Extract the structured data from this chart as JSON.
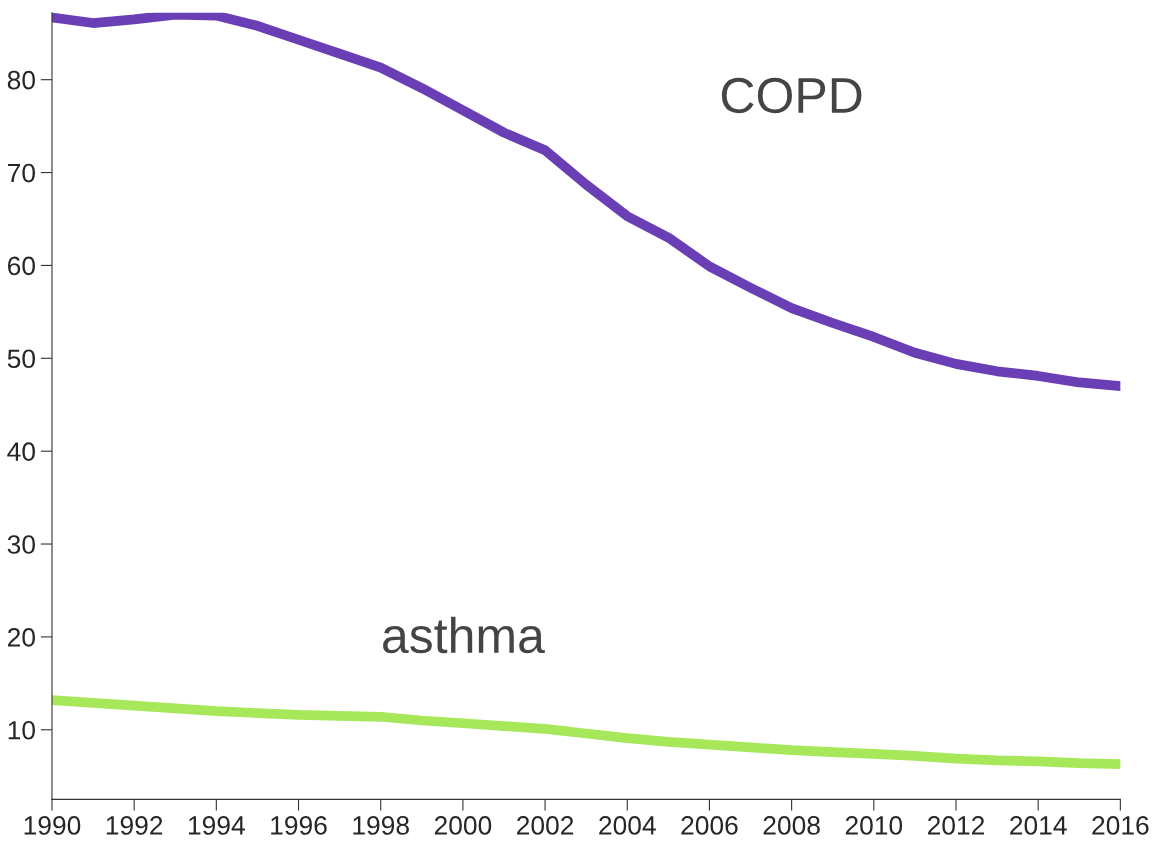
{
  "chart_data": {
    "type": "line",
    "x": [
      1990,
      1991,
      1992,
      1993,
      1994,
      1995,
      1996,
      1997,
      1998,
      1999,
      2000,
      2001,
      2002,
      2003,
      2004,
      2005,
      2006,
      2007,
      2008,
      2009,
      2010,
      2011,
      2012,
      2013,
      2014,
      2015,
      2016
    ],
    "series": [
      {
        "name": "COPD",
        "color": "#6a3fb5",
        "values": [
          86.7,
          86.1,
          86.5,
          87.0,
          86.9,
          85.8,
          84.3,
          82.8,
          81.3,
          79.1,
          76.7,
          74.3,
          72.4,
          68.7,
          65.3,
          63.0,
          59.9,
          57.6,
          55.4,
          53.8,
          52.3,
          50.6,
          49.4,
          48.6,
          48.1,
          47.4,
          47.0
        ]
      },
      {
        "name": "asthma",
        "color": "#a6e85a",
        "values": [
          13.2,
          12.9,
          12.6,
          12.3,
          12.0,
          11.8,
          11.6,
          11.5,
          11.4,
          11.0,
          10.7,
          10.4,
          10.1,
          9.6,
          9.1,
          8.7,
          8.4,
          8.1,
          7.8,
          7.6,
          7.4,
          7.2,
          6.9,
          6.7,
          6.6,
          6.4,
          6.3
        ]
      }
    ],
    "xlim": [
      1990,
      2016
    ],
    "ylim": [
      2.5,
      87.2
    ],
    "xticks": [
      1990,
      1992,
      1994,
      1996,
      1998,
      2000,
      2002,
      2004,
      2006,
      2008,
      2010,
      2012,
      2014,
      2016
    ],
    "yticks": [
      10,
      20,
      30,
      40,
      50,
      60,
      70,
      80
    ],
    "grid": false,
    "legend": false
  }
}
